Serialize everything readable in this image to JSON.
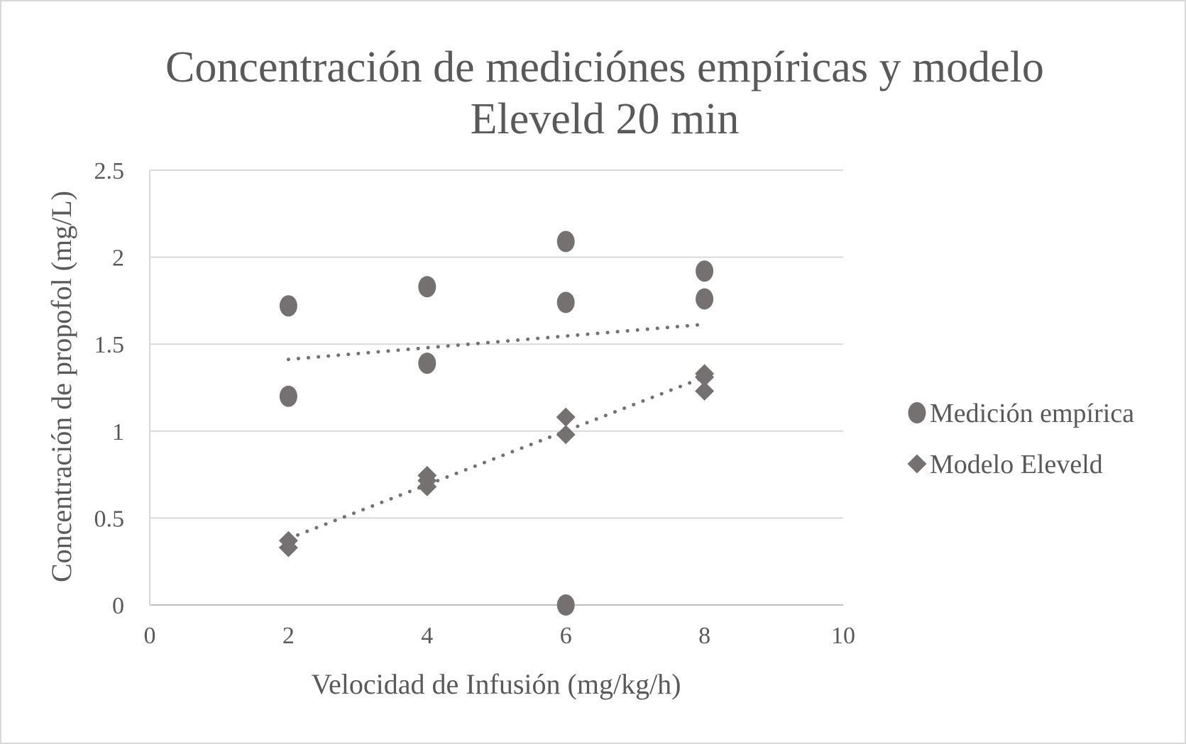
{
  "chart_data": {
    "type": "scatter",
    "title_lines": [
      "Concentración de mediciónes empíricas y modelo",
      "Eleveld 20 min"
    ],
    "xlabel": "Velocidad de Infusión (mg/kg/h)",
    "ylabel": "Concentración de propofol (mg/L)",
    "xlim": [
      0,
      10
    ],
    "ylim": [
      0,
      2.5
    ],
    "xticks": [
      "0",
      "2",
      "4",
      "6",
      "8",
      "10"
    ],
    "yticks": [
      "0",
      "0.5",
      "1",
      "1.5",
      "2",
      "2.5"
    ],
    "grid": "horizontal",
    "legend_position": "right",
    "series": [
      {
        "name": "Medición empírica",
        "marker": "circle",
        "color": "#767171",
        "trendline": "linear-dotted",
        "points": [
          [
            2,
            1.72
          ],
          [
            2,
            1.2
          ],
          [
            4,
            1.83
          ],
          [
            4,
            1.39
          ],
          [
            6,
            2.09
          ],
          [
            6,
            1.74
          ],
          [
            6,
            0.0
          ],
          [
            8,
            1.92
          ],
          [
            8,
            1.76
          ]
        ]
      },
      {
        "name": "Modelo Eleveld",
        "marker": "diamond",
        "color": "#767171",
        "trendline": "linear-dotted",
        "points": [
          [
            2,
            0.37
          ],
          [
            2,
            0.33
          ],
          [
            4,
            0.745
          ],
          [
            4,
            0.715
          ],
          [
            4,
            0.68
          ],
          [
            6,
            1.08
          ],
          [
            6,
            0.98
          ],
          [
            8,
            1.33
          ],
          [
            8,
            1.31
          ],
          [
            8,
            1.23
          ]
        ]
      }
    ]
  }
}
